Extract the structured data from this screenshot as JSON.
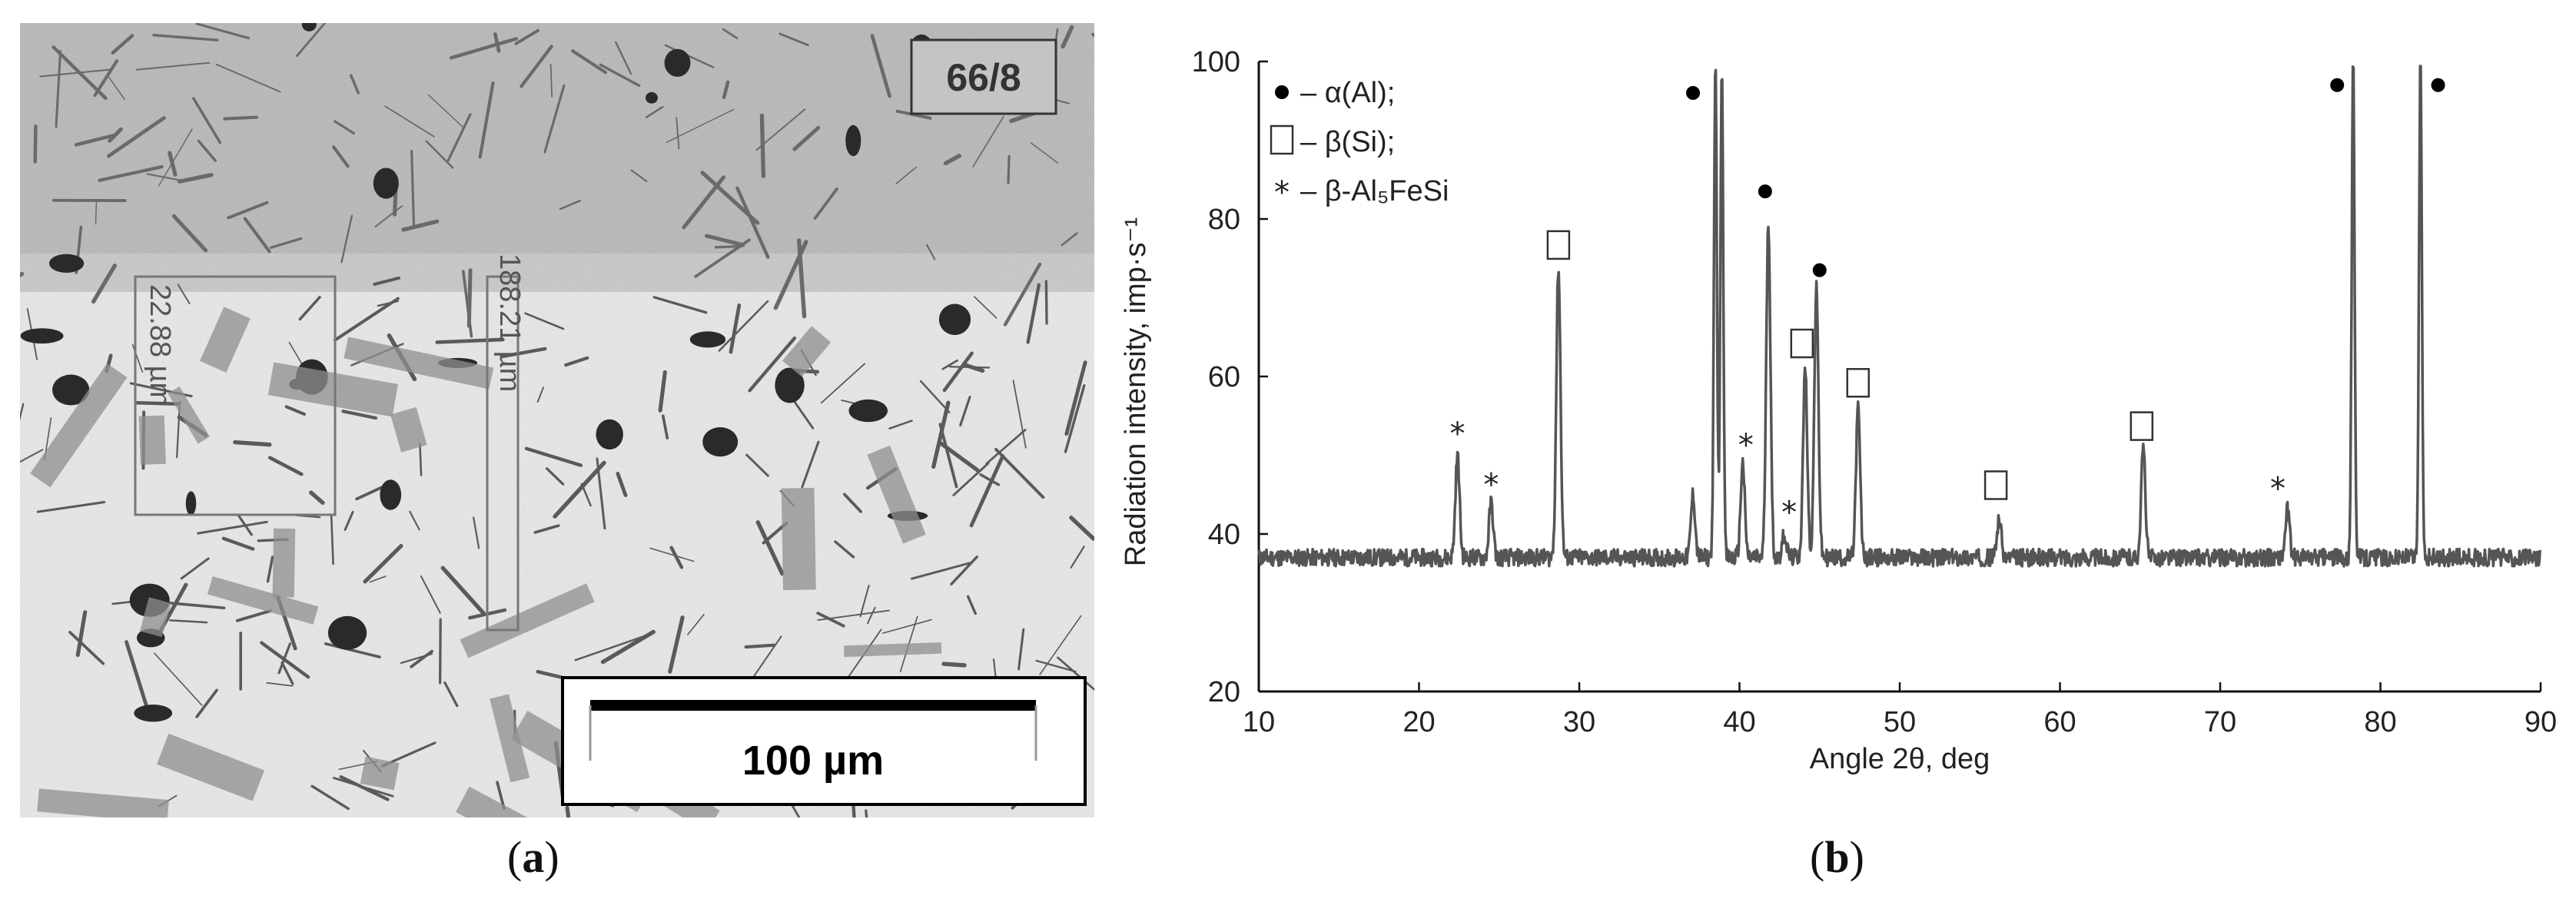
{
  "panel_a": {
    "letter": "a",
    "sample_tag": "66/8",
    "measure_1": "22.88 µm",
    "measure_2": "188.21 µm",
    "scale_bar_label": "100 µm"
  },
  "panel_b": {
    "letter": "b"
  },
  "chart_data": {
    "type": "line",
    "title": "",
    "xlabel": "Angle 2θ, deg",
    "ylabel": "Radiation intensity, imp·s⁻¹",
    "xlim": [
      10,
      90
    ],
    "ylim": [
      20,
      100
    ],
    "xticks": [
      10,
      20,
      30,
      40,
      50,
      60,
      70,
      80,
      90
    ],
    "yticks": [
      20,
      40,
      60,
      80,
      100
    ],
    "grid": false,
    "legend_position": "top-left",
    "legend": [
      {
        "symbol": "circle",
        "text": "– α(Al);"
      },
      {
        "symbol": "square",
        "text": "– β(Si);"
      },
      {
        "symbol": "asterisk",
        "text": "– β-Al₅FeSi"
      }
    ],
    "baseline": 37,
    "peaks": [
      {
        "x": 22.4,
        "y": 50,
        "phase": "asterisk"
      },
      {
        "x": 24.5,
        "y": 44,
        "phase": "asterisk"
      },
      {
        "x": 28.7,
        "y": 74,
        "phase": "square"
      },
      {
        "x": 37.1,
        "y": 45,
        "phase": ""
      },
      {
        "x": 38.5,
        "y": 100,
        "phase": "circle"
      },
      {
        "x": 38.9,
        "y": 100,
        "phase": ""
      },
      {
        "x": 40.2,
        "y": 49,
        "phase": "asterisk"
      },
      {
        "x": 41.8,
        "y": 80,
        "phase": "circle"
      },
      {
        "x": 42.8,
        "y": 40,
        "phase": "asterisk"
      },
      {
        "x": 44.1,
        "y": 61,
        "phase": "square"
      },
      {
        "x": 44.8,
        "y": 71,
        "phase": "circle"
      },
      {
        "x": 47.4,
        "y": 56,
        "phase": "square"
      },
      {
        "x": 56.2,
        "y": 42,
        "phase": "square"
      },
      {
        "x": 65.2,
        "y": 51,
        "phase": "square"
      },
      {
        "x": 74.2,
        "y": 43,
        "phase": "asterisk"
      },
      {
        "x": 78.3,
        "y": 100,
        "phase": "circle"
      },
      {
        "x": 82.5,
        "y": 100,
        "phase": "circle"
      }
    ],
    "markers": [
      {
        "symbol": "asterisk",
        "x": 22.4,
        "y": 53
      },
      {
        "symbol": "asterisk",
        "x": 24.5,
        "y": 46.5
      },
      {
        "symbol": "square",
        "x": 28.7,
        "y": 76.5
      },
      {
        "symbol": "circle",
        "x": 37.1,
        "y": 96
      },
      {
        "symbol": "asterisk",
        "x": 40.4,
        "y": 51.5
      },
      {
        "symbol": "circle",
        "x": 41.6,
        "y": 83.5
      },
      {
        "symbol": "asterisk",
        "x": 43.1,
        "y": 43
      },
      {
        "symbol": "square",
        "x": 43.9,
        "y": 64
      },
      {
        "symbol": "circle",
        "x": 45.0,
        "y": 73.5
      },
      {
        "symbol": "square",
        "x": 47.4,
        "y": 59
      },
      {
        "symbol": "square",
        "x": 56.0,
        "y": 46
      },
      {
        "symbol": "square",
        "x": 65.1,
        "y": 53.5
      },
      {
        "symbol": "asterisk",
        "x": 73.6,
        "y": 46
      },
      {
        "symbol": "circle",
        "x": 77.3,
        "y": 97
      },
      {
        "symbol": "circle",
        "x": 83.6,
        "y": 97
      }
    ]
  }
}
